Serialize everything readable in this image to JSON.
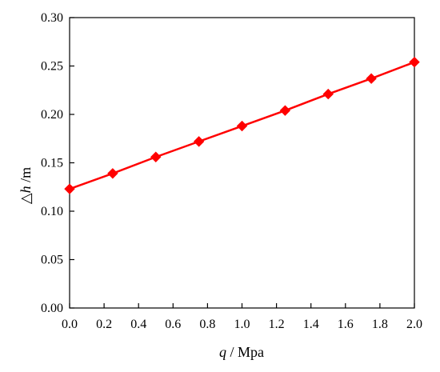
{
  "chart_data": {
    "type": "line",
    "title": "",
    "xlabel": {
      "var": "q",
      "unit": " / Mpa"
    },
    "ylabel": {
      "var": "△h",
      "unit": " /m"
    },
    "xlim": [
      0.0,
      2.0
    ],
    "ylim": [
      0.0,
      0.3
    ],
    "xticks": [
      "0.0",
      "0.2",
      "0.4",
      "0.6",
      "0.8",
      "1.0",
      "1.2",
      "1.4",
      "1.6",
      "1.8",
      "2.0"
    ],
    "yticks": [
      "0.00",
      "0.05",
      "0.10",
      "0.15",
      "0.20",
      "0.25",
      "0.30"
    ],
    "grid": false,
    "legend": "none",
    "series": [
      {
        "color": "#ff0000",
        "marker": "diamond",
        "x": [
          0.0,
          0.25,
          0.5,
          0.75,
          1.0,
          1.25,
          1.5,
          1.75,
          2.0
        ],
        "y": [
          0.123,
          0.139,
          0.156,
          0.172,
          0.188,
          0.204,
          0.221,
          0.237,
          0.254
        ]
      }
    ]
  }
}
